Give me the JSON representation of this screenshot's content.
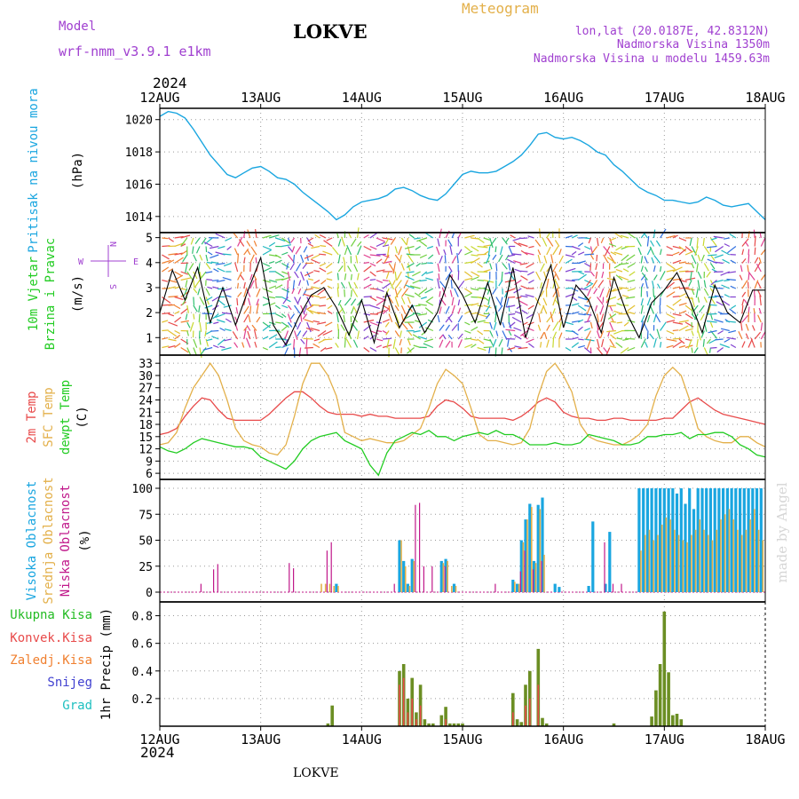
{
  "header": {
    "model_label": "Model",
    "model_name": "wrf-nmm_v3.9.1  e1km",
    "station": "LOKVE",
    "product": "Meteogram",
    "lonlat": "lon,lat (20.0187E, 42.8312N)",
    "altitude": "Nadmorska Visina 1350m",
    "model_altitude": "Nadmorska Visina u modelu 1459.63m",
    "year": "2024",
    "footer_station": "LOKVE",
    "watermark": "made by Angel"
  },
  "colors": {
    "pressure": "#1aa6e0",
    "temp2m": "#e84a4a",
    "sfc": "#e3b04a",
    "dewpt": "#22cc22",
    "high_cloud": "#1aa6e0",
    "mid_cloud": "#e3b04a",
    "low_cloud": "#c0188a",
    "total_precip": "#22bb22",
    "convective": "#e84a4a",
    "frozen": "#f08030",
    "snow": "#4040d0",
    "hail": "#20c0c0",
    "header_purple": "#a040d0",
    "header_gold": "#e3b04a",
    "watermark": "#d6d6d6"
  },
  "chart_data": [
    {
      "type": "line",
      "panel": "pressure",
      "label_lines": [
        "Pritisak na nivou mora"
      ],
      "unit": "(hPa)",
      "x_ticks": [
        "12AUG",
        "13AUG",
        "14AUG",
        "15AUG",
        "16AUG",
        "17AUG",
        "18AUG"
      ],
      "x_range_hours": [
        0,
        144
      ],
      "ylim": [
        1013,
        1020.7
      ],
      "y_ticks": [
        1014,
        1016,
        1018,
        1020
      ],
      "series": [
        {
          "x": [
            0,
            2,
            4,
            6,
            8,
            10,
            12,
            14,
            16,
            18,
            20,
            22,
            24,
            26,
            28,
            30,
            32,
            34,
            36,
            38,
            40,
            42,
            44,
            46,
            48,
            50,
            52,
            54,
            56,
            58,
            60,
            62,
            64,
            66,
            68,
            70,
            72,
            74,
            76,
            78,
            80,
            82,
            84,
            86,
            88,
            90,
            92,
            94,
            96,
            98,
            100,
            102,
            104,
            106,
            108,
            110,
            112,
            114,
            116,
            118,
            120,
            122,
            124,
            126,
            128,
            130,
            132,
            134,
            136,
            138,
            140,
            142,
            144
          ],
          "y": [
            1020.2,
            1020.5,
            1020.4,
            1020.1,
            1019.4,
            1018.6,
            1017.8,
            1017.2,
            1016.6,
            1016.4,
            1016.7,
            1017.0,
            1017.1,
            1016.8,
            1016.4,
            1016.3,
            1016.0,
            1015.5,
            1015.1,
            1014.7,
            1014.3,
            1013.8,
            1014.1,
            1014.6,
            1014.9,
            1015.0,
            1015.1,
            1015.3,
            1015.7,
            1015.8,
            1015.6,
            1015.3,
            1015.1,
            1015.0,
            1015.4,
            1016.0,
            1016.6,
            1016.8,
            1016.7,
            1016.7,
            1016.8,
            1017.1,
            1017.4,
            1017.8,
            1018.4,
            1019.1,
            1019.2,
            1018.9,
            1018.8,
            1018.9,
            1018.7,
            1018.4,
            1018.0,
            1017.8,
            1017.2,
            1016.8,
            1016.3,
            1015.8,
            1015.5,
            1015.3,
            1015.0,
            1015.0,
            1014.9,
            1014.8,
            1014.9,
            1015.2,
            1015.0,
            1014.7,
            1014.6,
            1014.7,
            1014.8,
            1014.3,
            1013.8
          ]
        }
      ]
    },
    {
      "type": "line",
      "panel": "wind",
      "label_lines": [
        "10m Vjetar",
        "Brzina i Pravac"
      ],
      "unit": "(m/s)",
      "compass": {
        "n": "N",
        "s": "S",
        "w": "W",
        "e": "E"
      },
      "ylim": [
        0.3,
        5.2
      ],
      "y_ticks": [
        1,
        2,
        3,
        4,
        5
      ],
      "series": [
        {
          "name": "wind speed",
          "x": [
            0,
            3,
            6,
            9,
            12,
            15,
            18,
            21,
            24,
            27,
            30,
            33,
            36,
            39,
            42,
            45,
            48,
            51,
            54,
            57,
            60,
            63,
            66,
            69,
            72,
            75,
            78,
            81,
            84,
            87,
            90,
            93,
            96,
            99,
            102,
            105,
            108,
            111,
            114,
            117,
            120,
            123,
            126,
            129,
            132,
            135,
            138,
            141,
            144
          ],
          "y": [
            2.0,
            3.7,
            2.5,
            3.8,
            1.6,
            3.0,
            1.5,
            2.9,
            4.2,
            1.5,
            0.7,
            1.8,
            2.7,
            3.0,
            2.2,
            1.1,
            2.5,
            0.8,
            2.8,
            1.4,
            2.3,
            1.2,
            2.0,
            3.5,
            2.7,
            1.6,
            3.2,
            1.5,
            3.8,
            1.0,
            2.5,
            3.9,
            1.4,
            3.1,
            2.5,
            1.2,
            3.4,
            2.0,
            1.0,
            2.4,
            2.9,
            3.6,
            2.5,
            1.2,
            3.1,
            2.0,
            1.6,
            2.9,
            2.9
          ]
        }
      ]
    },
    {
      "type": "line",
      "panel": "temperature",
      "label_lines": [
        "2m Temp",
        "SFC Temp",
        "dewpt Temp"
      ],
      "unit": "(C)",
      "ylim": [
        4.5,
        35
      ],
      "y_ticks": [
        6,
        9,
        12,
        15,
        18,
        21,
        24,
        27,
        30,
        33
      ],
      "x": [
        0,
        2,
        4,
        6,
        8,
        10,
        12,
        14,
        16,
        18,
        20,
        22,
        24,
        26,
        28,
        30,
        32,
        34,
        36,
        38,
        40,
        42,
        44,
        46,
        48,
        50,
        52,
        54,
        56,
        58,
        60,
        62,
        64,
        66,
        68,
        70,
        72,
        74,
        76,
        78,
        80,
        82,
        84,
        86,
        88,
        90,
        92,
        94,
        96,
        98,
        100,
        102,
        104,
        106,
        108,
        110,
        112,
        114,
        116,
        118,
        120,
        122,
        124,
        126,
        128,
        130,
        132,
        134,
        136,
        138,
        140,
        142,
        144
      ],
      "series": [
        {
          "name": "2m Temp",
          "y": [
            15.5,
            16,
            17,
            20,
            22.5,
            24.5,
            24,
            21.5,
            19.5,
            19,
            19,
            19,
            19,
            20.5,
            22.5,
            24.5,
            26,
            26,
            24.5,
            22.5,
            21,
            20.5,
            20.5,
            20.5,
            20,
            20.5,
            20,
            20,
            19.5,
            19.5,
            19.5,
            19.5,
            20,
            22.5,
            24,
            23.5,
            22,
            20,
            19.5,
            19.5,
            19.5,
            19.5,
            19,
            20,
            21.5,
            23.5,
            24.5,
            23.5,
            21,
            20,
            19.5,
            19.5,
            19,
            19,
            19.5,
            19.5,
            19,
            19,
            19,
            19,
            19.5,
            19.5,
            21.5,
            23.5,
            24.5,
            23,
            21.5,
            20.5,
            20,
            19.5,
            19,
            18.5,
            18
          ]
        },
        {
          "name": "SFC Temp",
          "y": [
            13,
            13.5,
            16,
            22,
            27,
            30,
            33,
            30,
            24,
            17,
            14,
            13,
            12.5,
            11,
            10.5,
            13,
            20,
            28,
            33,
            33,
            30,
            25,
            16,
            15,
            14,
            14.5,
            14,
            13.5,
            13.5,
            14,
            15.5,
            17,
            22,
            28,
            31.5,
            30,
            28,
            22,
            15.5,
            14,
            14,
            13.5,
            13,
            13.5,
            17,
            25,
            31,
            33,
            30,
            26,
            18,
            15,
            14,
            13.5,
            13,
            13,
            14,
            15.5,
            18,
            25,
            30,
            32,
            30,
            24,
            17,
            15,
            14,
            13.5,
            13.5,
            15,
            15,
            13.5,
            12.5
          ]
        },
        {
          "name": "dewpt Temp",
          "y": [
            12.5,
            11.5,
            11,
            12,
            13.5,
            14.5,
            14,
            13.5,
            13,
            12.5,
            12.5,
            12,
            10,
            9,
            8,
            7,
            9,
            12,
            14,
            15,
            15.5,
            16,
            14,
            13,
            12,
            8,
            5.5,
            11,
            14,
            15,
            16,
            15.5,
            16.5,
            15,
            15,
            14,
            15,
            15.5,
            16,
            15.5,
            16.5,
            15.5,
            15.5,
            14.5,
            13,
            13,
            13,
            13.5,
            13,
            13,
            13.5,
            15.5,
            15,
            14.5,
            14,
            13,
            13,
            13.5,
            15,
            15,
            15.5,
            15.5,
            16,
            14.5,
            15.5,
            15.5,
            16,
            16,
            15,
            13,
            12,
            10.5,
            10
          ]
        }
      ]
    },
    {
      "type": "bar",
      "panel": "cloud",
      "label_lines": [
        "Visoka Oblacnost",
        "Srednja Oblacnost",
        "Niska Oblacnost"
      ],
      "unit": "(%)",
      "ylim": [
        0,
        100
      ],
      "y_ticks": [
        0,
        25,
        50,
        75,
        100
      ],
      "series": [
        {
          "name": "Visoka Oblacnost",
          "x": [
            42,
            57,
            58,
            59,
            60,
            67,
            68,
            70,
            84,
            85,
            86,
            87,
            88,
            89,
            90,
            91,
            94,
            95,
            102,
            103,
            106,
            107,
            114,
            115,
            116,
            117,
            118,
            119,
            120,
            121,
            122,
            123,
            124,
            125,
            126,
            127,
            128,
            129,
            130,
            131,
            132,
            133,
            134,
            135,
            136,
            137,
            138,
            139,
            140,
            141,
            142,
            143
          ],
          "y": [
            8,
            50,
            30,
            8,
            32,
            30,
            32,
            8,
            12,
            8,
            50,
            70,
            85,
            30,
            84,
            91,
            8,
            5,
            6,
            68,
            8,
            58,
            100,
            100,
            100,
            100,
            100,
            100,
            100,
            100,
            100,
            95,
            100,
            85,
            100,
            80,
            100,
            100,
            100,
            100,
            100,
            100,
            100,
            100,
            100,
            100,
            100,
            100,
            100,
            100,
            100,
            100
          ]
        },
        {
          "name": "Srednja Oblacnost",
          "x": [
            38,
            39,
            40,
            41,
            42,
            57,
            58,
            59,
            60,
            67,
            68,
            69,
            70,
            84,
            85,
            86,
            87,
            88,
            89,
            90,
            91,
            114,
            115,
            116,
            117,
            118,
            119,
            120,
            121,
            122,
            123,
            124,
            125,
            126,
            127,
            128,
            129,
            130,
            131,
            132,
            133,
            134,
            135,
            136,
            137,
            138,
            139,
            140,
            141,
            142,
            143
          ],
          "y": [
            8,
            8,
            8,
            6,
            6,
            50,
            25,
            6,
            30,
            28,
            30,
            6,
            6,
            10,
            8,
            48,
            70,
            82,
            28,
            80,
            36,
            40,
            55,
            60,
            50,
            55,
            65,
            72,
            70,
            60,
            55,
            50,
            48,
            55,
            60,
            70,
            60,
            55,
            50,
            60,
            70,
            75,
            80,
            70,
            60,
            55,
            60,
            70,
            80,
            60,
            50
          ]
        },
        {
          "name": "Niska Oblacnost",
          "x": [
            10,
            13,
            14,
            31,
            32,
            40,
            41,
            56,
            61,
            62,
            63,
            65,
            68,
            80,
            86,
            87,
            89,
            91,
            106,
            108,
            110
          ],
          "y": [
            8,
            22,
            27,
            28,
            23,
            40,
            48,
            8,
            84,
            86,
            25,
            25,
            25,
            8,
            20,
            40,
            22,
            30,
            48,
            8,
            8
          ]
        }
      ]
    },
    {
      "type": "bar",
      "panel": "precip",
      "label_lines": [
        "Ukupna Kisa",
        "Konvek.Kisa",
        "Zaledj.Kisa",
        "Snijeg",
        "Grad"
      ],
      "unit": "1hr Precip (mm)",
      "ylim": [
        0,
        0.9
      ],
      "y_ticks": [
        0.2,
        0.4,
        0.6,
        0.8
      ],
      "series": [
        {
          "name": "Ukupna Kisa",
          "x": [
            40,
            41,
            57,
            58,
            59,
            60,
            61,
            62,
            63,
            64,
            65,
            67,
            68,
            69,
            70,
            71,
            72,
            84,
            85,
            86,
            87,
            88,
            90,
            91,
            92,
            108,
            117,
            118,
            119,
            120,
            121,
            122,
            123,
            124
          ],
          "y": [
            0.02,
            0.15,
            0.4,
            0.45,
            0.2,
            0.35,
            0.1,
            0.3,
            0.05,
            0.02,
            0.02,
            0.08,
            0.14,
            0.02,
            0.02,
            0.02,
            0.02,
            0.24,
            0.05,
            0.03,
            0.3,
            0.4,
            0.56,
            0.06,
            0.02,
            0.02,
            0.07,
            0.26,
            0.45,
            0.83,
            0.39,
            0.08,
            0.09,
            0.05
          ]
        },
        {
          "name": "Konvek.Kisa",
          "x": [
            57,
            58,
            59,
            60,
            61,
            62,
            68,
            84,
            87,
            88,
            90
          ],
          "y": [
            0.3,
            0.35,
            0.1,
            0.2,
            0.05,
            0.15,
            0.05,
            0.1,
            0.15,
            0.2,
            0.3
          ]
        }
      ]
    }
  ]
}
